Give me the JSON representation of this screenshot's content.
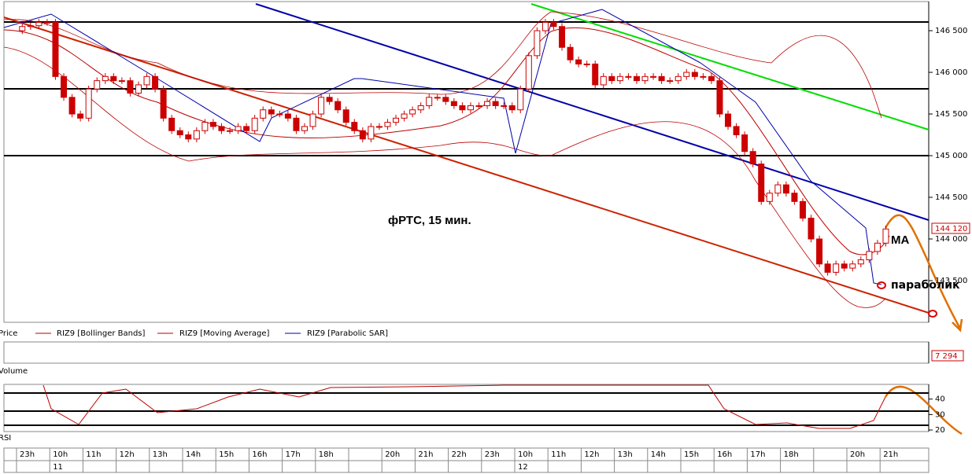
{
  "chart_data": [
    {
      "type": "candlestick",
      "title": "фРТС,  15 мин.",
      "ylim": [
        143000,
        146840
      ],
      "yticks": [
        {
          "value": 143500,
          "label": "143 500"
        },
        {
          "value": 144000,
          "label": "144 000"
        },
        {
          "value": 144500,
          "label": "144 500"
        },
        {
          "value": 145000,
          "label": "145 000"
        },
        {
          "value": 145500,
          "label": "145 500"
        },
        {
          "value": 146000,
          "label": "146 000"
        },
        {
          "value": 146500,
          "label": "146 500"
        }
      ],
      "last_price": {
        "value": 144120,
        "label": "144 120"
      },
      "color": "#cc0000",
      "annotations": [
        "MA",
        "параболик"
      ],
      "legend": [
        "Price",
        "RIZ9 [Bollinger Bands]",
        "RIZ9 [Moving Average]",
        "RIZ9 [Parabolic SAR]"
      ],
      "hours": [
        "23h",
        "10h",
        "11h",
        "12h",
        "13h",
        "14h",
        "15h",
        "16h",
        "17h",
        "18h",
        null,
        "20h",
        "21h",
        "22h",
        "23h",
        "10h",
        "11h",
        "12h",
        "13h",
        "14h",
        "15h",
        "16h",
        "17h",
        "18h",
        null,
        "20h",
        "21h"
      ],
      "days": [
        null,
        "11",
        null,
        null,
        null,
        null,
        null,
        null,
        null,
        null,
        null,
        null,
        null,
        null,
        null,
        "12",
        null,
        null,
        null,
        null,
        null,
        null,
        null,
        null,
        null,
        null,
        null
      ],
      "candles": [
        [
          146500,
          146590,
          146460,
          146550
        ],
        [
          146550,
          146600,
          146510,
          146560
        ],
        [
          146560,
          146640,
          146520,
          146600
        ],
        [
          146600,
          146640,
          146560,
          146600
        ],
        [
          146600,
          146640,
          145910,
          145950
        ],
        [
          145950,
          145990,
          145660,
          145700
        ],
        [
          145700,
          145740,
          145460,
          145500
        ],
        [
          145500,
          145540,
          145410,
          145450
        ],
        [
          145450,
          145840,
          145410,
          145800
        ],
        [
          145800,
          145940,
          145760,
          145900
        ],
        [
          145900,
          145990,
          145860,
          145950
        ],
        [
          145950,
          145990,
          145860,
          145900
        ],
        [
          145900,
          145940,
          145860,
          145900
        ],
        [
          145900,
          145940,
          145710,
          145750
        ],
        [
          145750,
          145890,
          145710,
          145850
        ],
        [
          145850,
          145990,
          145810,
          145950
        ],
        [
          145950,
          145990,
          145760,
          145800
        ],
        [
          145800,
          145840,
          145410,
          145450
        ],
        [
          145450,
          145490,
          145260,
          145300
        ],
        [
          145300,
          145340,
          145210,
          145250
        ],
        [
          145250,
          145290,
          145160,
          145200
        ],
        [
          145200,
          145340,
          145160,
          145300
        ],
        [
          145300,
          145440,
          145260,
          145400
        ],
        [
          145400,
          145440,
          145310,
          145350
        ],
        [
          145350,
          145390,
          145260,
          145300
        ],
        [
          145300,
          145340,
          145260,
          145300
        ],
        [
          145300,
          145390,
          145260,
          145350
        ],
        [
          145350,
          145390,
          145260,
          145300
        ],
        [
          145300,
          145490,
          145260,
          145450
        ],
        [
          145450,
          145590,
          145410,
          145550
        ],
        [
          145550,
          145590,
          145460,
          145500
        ],
        [
          145500,
          145540,
          145460,
          145500
        ],
        [
          145500,
          145540,
          145410,
          145450
        ],
        [
          145450,
          145490,
          145260,
          145300
        ],
        [
          145300,
          145390,
          145260,
          145350
        ],
        [
          145350,
          145540,
          145310,
          145500
        ],
        [
          145500,
          145740,
          145460,
          145700
        ],
        [
          145700,
          145740,
          145610,
          145650
        ],
        [
          145650,
          145690,
          145510,
          145550
        ],
        [
          145550,
          145590,
          145360,
          145400
        ],
        [
          145400,
          145440,
          145260,
          145300
        ],
        [
          145300,
          145340,
          145160,
          145200
        ],
        [
          145200,
          145390,
          145160,
          145350
        ],
        [
          145350,
          145390,
          145310,
          145350
        ],
        [
          145350,
          145440,
          145310,
          145400
        ],
        [
          145400,
          145490,
          145360,
          145450
        ],
        [
          145450,
          145540,
          145410,
          145500
        ],
        [
          145500,
          145590,
          145460,
          145550
        ],
        [
          145550,
          145640,
          145510,
          145600
        ],
        [
          145600,
          145740,
          145560,
          145700
        ],
        [
          145700,
          145740,
          145660,
          145700
        ],
        [
          145700,
          145740,
          145610,
          145650
        ],
        [
          145650,
          145690,
          145560,
          145600
        ],
        [
          145600,
          145640,
          145510,
          145550
        ],
        [
          145550,
          145640,
          145510,
          145600
        ],
        [
          145600,
          145640,
          145560,
          145600
        ],
        [
          145600,
          145690,
          145560,
          145650
        ],
        [
          145650,
          145690,
          145560,
          145600
        ],
        [
          145600,
          145640,
          145560,
          145600
        ],
        [
          145600,
          145640,
          145510,
          145550
        ],
        [
          145550,
          145840,
          145510,
          145800
        ],
        [
          145800,
          146240,
          145760,
          146200
        ],
        [
          146200,
          146540,
          146160,
          146500
        ],
        [
          146500,
          146640,
          146460,
          146600
        ],
        [
          146600,
          146640,
          146510,
          146550
        ],
        [
          146550,
          146590,
          146260,
          146300
        ],
        [
          146300,
          146340,
          146110,
          146150
        ],
        [
          146150,
          146190,
          146060,
          146100
        ],
        [
          146100,
          146140,
          146060,
          146100
        ],
        [
          146100,
          146140,
          145810,
          145850
        ],
        [
          145850,
          145990,
          145810,
          145950
        ],
        [
          145950,
          145990,
          145860,
          145900
        ],
        [
          145900,
          145990,
          145860,
          145950
        ],
        [
          145950,
          145990,
          145910,
          145950
        ],
        [
          145950,
          145990,
          145860,
          145900
        ],
        [
          145900,
          145990,
          145860,
          145950
        ],
        [
          145950,
          145990,
          145910,
          145950
        ],
        [
          145950,
          145990,
          145860,
          145900
        ],
        [
          145900,
          145940,
          145860,
          145900
        ],
        [
          145900,
          145990,
          145860,
          145950
        ],
        [
          145950,
          146040,
          145910,
          146000
        ],
        [
          146000,
          146040,
          145910,
          145950
        ],
        [
          145950,
          145990,
          145910,
          145950
        ],
        [
          145950,
          145990,
          145860,
          145900
        ],
        [
          145900,
          145940,
          145460,
          145500
        ],
        [
          145500,
          145540,
          145310,
          145350
        ],
        [
          145350,
          145390,
          145210,
          145250
        ],
        [
          145250,
          145290,
          145010,
          145050
        ],
        [
          145050,
          145090,
          144860,
          144900
        ],
        [
          144900,
          144940,
          144410,
          144450
        ],
        [
          144450,
          144590,
          144410,
          144550
        ],
        [
          144550,
          144690,
          144510,
          144650
        ],
        [
          144650,
          144690,
          144510,
          144550
        ],
        [
          144550,
          144590,
          144410,
          144450
        ],
        [
          144450,
          144490,
          144210,
          144250
        ],
        [
          144250,
          144290,
          143960,
          144000
        ],
        [
          144000,
          144040,
          143660,
          143700
        ],
        [
          143700,
          143740,
          143560,
          143600
        ],
        [
          143600,
          143740,
          143560,
          143700
        ],
        [
          143700,
          143740,
          143610,
          143650
        ],
        [
          143650,
          143740,
          143610,
          143700
        ],
        [
          143700,
          143790,
          143660,
          143750
        ],
        [
          143750,
          143890,
          143710,
          143850
        ],
        [
          143850,
          143990,
          143810,
          143950
        ],
        [
          143950,
          144160,
          143910,
          144120
        ]
      ]
    },
    {
      "type": "volume",
      "name": "Volume",
      "last": {
        "value": 7294,
        "label": "7 294"
      }
    },
    {
      "type": "rsi",
      "name": "RSI",
      "ylim": [
        19,
        49.5
      ],
      "yticks": [
        20,
        30,
        40
      ]
    }
  ]
}
